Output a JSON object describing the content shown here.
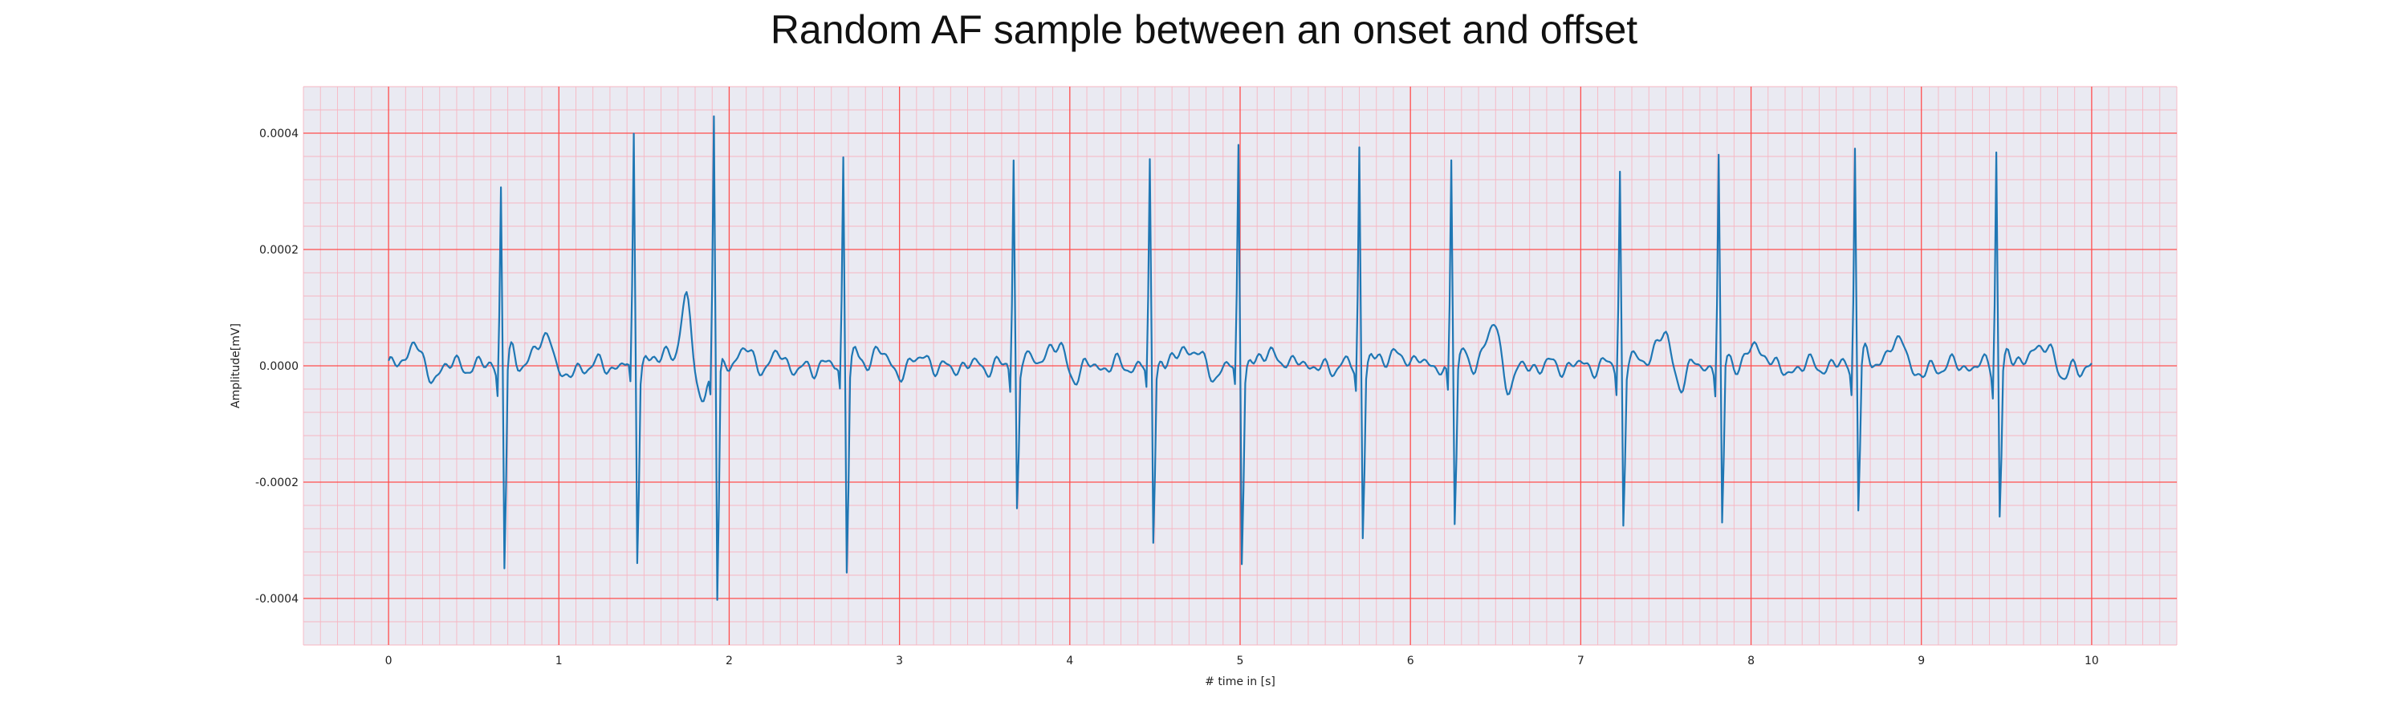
{
  "chart_data": {
    "type": "line",
    "title": "Random AF sample between an onset and offset",
    "xlabel": "# time in [s]",
    "ylabel": "Amplitude[mV]",
    "xlim": [
      -0.5,
      10.5
    ],
    "ylim": [
      -0.00048,
      0.00048
    ],
    "x_ticks": [
      0,
      1,
      2,
      3,
      4,
      5,
      6,
      7,
      8,
      9,
      10
    ],
    "x_tick_labels": [
      "0",
      "1",
      "2",
      "3",
      "4",
      "5",
      "6",
      "7",
      "8",
      "9",
      "10"
    ],
    "y_ticks": [
      -0.0004,
      -0.0002,
      0.0,
      0.0002,
      0.0004
    ],
    "y_tick_labels": [
      "-0.0004",
      "-0.0002",
      "0.0000",
      "0.0002",
      "0.0004"
    ],
    "grid": {
      "major": true,
      "minor": true
    },
    "colors": {
      "line": "#1f77b4",
      "background": "#eaeaf2",
      "major_grid": "#ff4d4d",
      "minor_grid": "#f7b6c2"
    },
    "series": [
      {
        "x_start": 0,
        "x_end": 10,
        "sample_count": 1001,
        "beats": [
          {
            "t": 0.67,
            "peak": 0.00032,
            "trough": -0.00036
          },
          {
            "t": 1.45,
            "peak": 0.000395,
            "trough": -0.000345
          },
          {
            "t": 1.92,
            "peak": 0.000435,
            "trough": -0.000435
          },
          {
            "t": 2.68,
            "peak": 0.000368,
            "trough": -0.000358
          },
          {
            "t": 3.68,
            "peak": 0.000362,
            "trough": -0.000258
          },
          {
            "t": 4.48,
            "peak": 0.000345,
            "trough": -0.000325
          },
          {
            "t": 5.0,
            "peak": 0.000372,
            "trough": -0.000355
          },
          {
            "t": 5.71,
            "peak": 0.000378,
            "trough": -0.000305
          },
          {
            "t": 6.25,
            "peak": 0.00037,
            "trough": -0.00028
          },
          {
            "t": 7.24,
            "peak": 0.00034,
            "trough": -0.00029
          },
          {
            "t": 7.82,
            "peak": 0.000365,
            "trough": -0.000305
          },
          {
            "t": 8.62,
            "peak": 0.00039,
            "trough": -0.000255
          },
          {
            "t": 9.45,
            "peak": 0.00038,
            "trough": -0.00027
          }
        ],
        "t_waves": [
          {
            "t": 0.15,
            "amp": 5e-05
          },
          {
            "t": 0.95,
            "amp": 6e-05
          },
          {
            "t": 1.75,
            "amp": 0.00012
          },
          {
            "t": 2.3,
            "amp": 3e-05
          },
          {
            "t": 3.15,
            "amp": 2e-05
          },
          {
            "t": 3.95,
            "amp": 3e-05
          },
          {
            "t": 4.75,
            "amp": 3e-05
          },
          {
            "t": 5.35,
            "amp": 2e-05
          },
          {
            "t": 6.05,
            "amp": 3e-05
          },
          {
            "t": 6.5,
            "amp": 6e-05
          },
          {
            "t": 7.5,
            "amp": 5e-05
          },
          {
            "t": 8.1,
            "amp": 3e-05
          },
          {
            "t": 8.9,
            "amp": 5e-05
          },
          {
            "t": 9.75,
            "amp": 5e-05
          }
        ]
      }
    ]
  }
}
